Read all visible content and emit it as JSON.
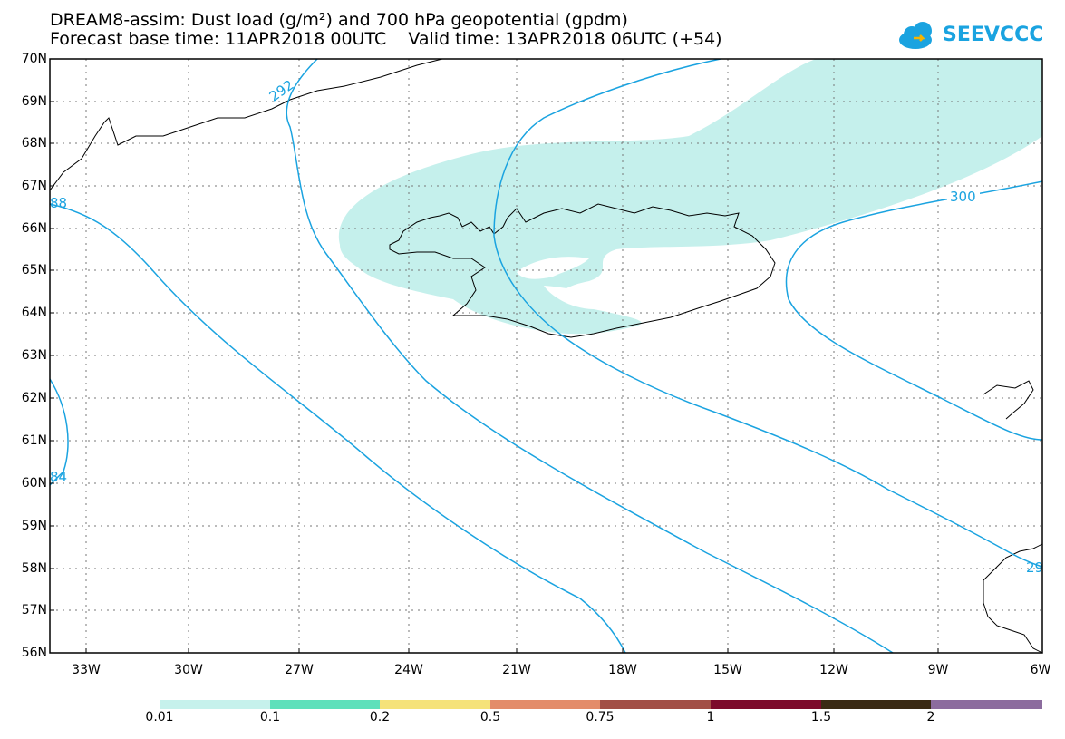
{
  "header": {
    "line1": "DREAM8-assim: Dust load (g/m²) and 700 hPa geopotential (gpdm)",
    "line2": "Forecast base time: 11APR2018 00UTC    Valid time: 13APR2018 06UTC (+54)"
  },
  "logo": {
    "text": "SEEVCCC",
    "icon": "cloud-icon",
    "color": "#1aa3e0"
  },
  "map": {
    "lat_labels": [
      "70N",
      "69N",
      "68N",
      "67N",
      "66N",
      "65N",
      "64N",
      "63N",
      "62N",
      "61N",
      "60N",
      "59N",
      "58N",
      "57N",
      "56N"
    ],
    "lon_labels": [
      "33W",
      "30W",
      "27W",
      "24W",
      "21W",
      "18W",
      "15W",
      "12W",
      "9W",
      "6W"
    ],
    "contour_labels": [
      "292",
      "300",
      "88",
      "84",
      "29"
    ],
    "contour_color": "#1aa3e0",
    "dust_fill_color": "#c5f0ec"
  },
  "colorbar": {
    "labels": [
      "0.01",
      "0.1",
      "0.2",
      "0.5",
      "0.75",
      "1",
      "1.5",
      "2"
    ],
    "colors": [
      "#c6f1ec",
      "#5ee0bb",
      "#f5e27a",
      "#e38c6a",
      "#a24f46",
      "#7c0a2b",
      "#3a2a14",
      "#8c6c9e"
    ]
  }
}
